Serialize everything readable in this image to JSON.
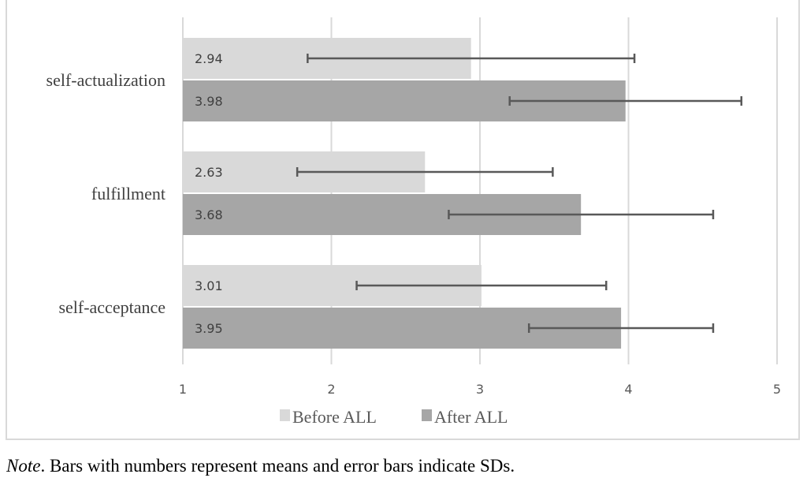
{
  "chart_data": {
    "type": "bar",
    "orientation": "horizontal",
    "categories": [
      "self-actualization",
      "fulfillment",
      "self-acceptance"
    ],
    "series": [
      {
        "name": "Before ALL",
        "color": "#d9d9d9",
        "values": [
          2.94,
          2.63,
          3.01
        ],
        "labels": [
          "2.94",
          "2.63",
          "3.01"
        ],
        "sd": [
          1.1,
          0.86,
          0.84
        ]
      },
      {
        "name": "After ALL",
        "color": "#a6a6a6",
        "values": [
          3.98,
          3.68,
          3.95
        ],
        "labels": [
          "3.98",
          "3.68",
          "3.95"
        ],
        "sd": [
          0.78,
          0.89,
          0.62
        ]
      }
    ],
    "xlim": [
      1,
      5
    ],
    "xticks": [
      "1",
      "2",
      "3",
      "4",
      "5"
    ],
    "grid": true,
    "legend": "bottom",
    "error_bar_color": "#595959"
  },
  "note": {
    "label": "Note",
    "text": ". Bars with numbers represent means and error bars indicate SDs."
  }
}
